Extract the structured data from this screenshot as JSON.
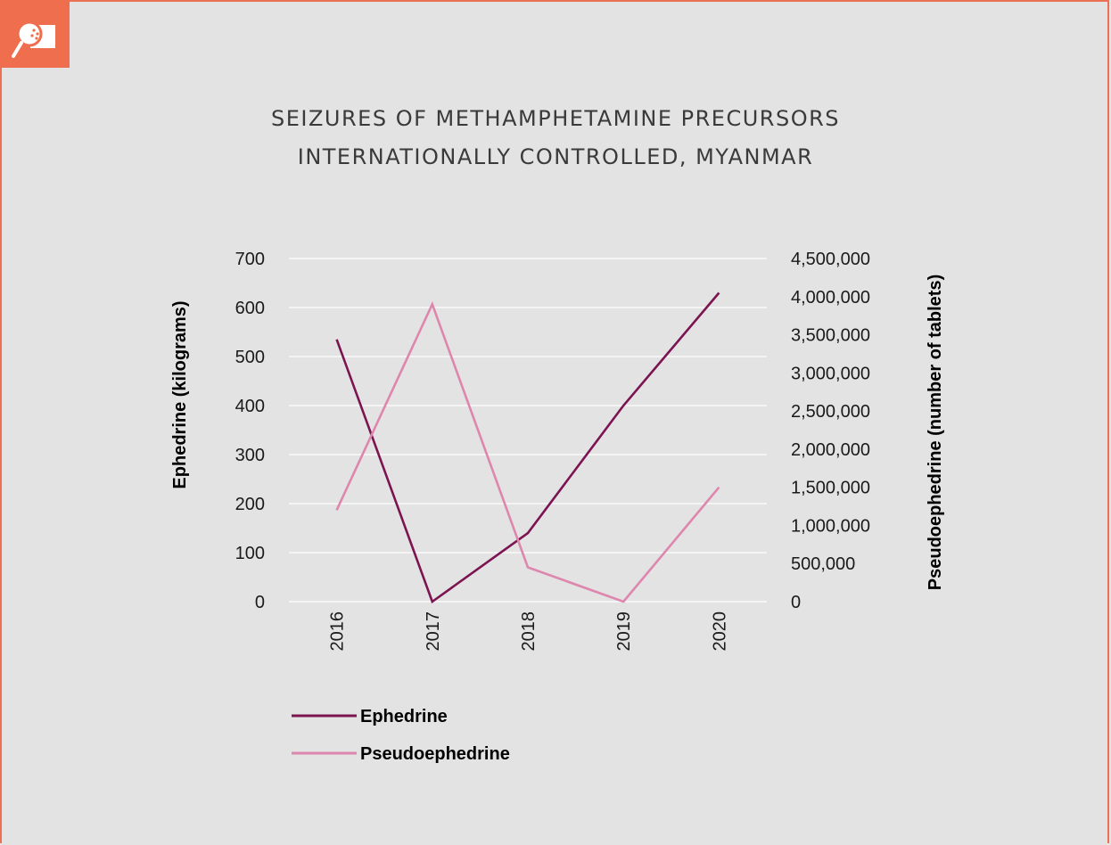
{
  "header": {
    "title_line1": "SEIZURES OF METHAMPHETAMINE PRECURSORS",
    "title_line2": "INTERNATIONALLY CONTROLLED, MYANMAR"
  },
  "icon": "magnifier-leaf-icon",
  "colors": {
    "accent": "#ee6e4e",
    "ephedrine": "#7b1450",
    "pseudoephedrine": "#de86ad",
    "background": "#e3e3e4",
    "grid": "#ffffff"
  },
  "chart_data": {
    "type": "line",
    "title": "SEIZURES OF METHAMPHETAMINE PRECURSORS INTERNATIONALLY CONTROLLED, MYANMAR",
    "categories": [
      "2016",
      "2017",
      "2018",
      "2019",
      "2020"
    ],
    "ylabel_left": "Ephedrine (kilograms)",
    "ylabel_right": "Pseudoephedrine (number of tablets)",
    "ylim_left": [
      0,
      700
    ],
    "yticks_left": [
      "0",
      "100",
      "200",
      "300",
      "400",
      "500",
      "600",
      "700"
    ],
    "ylim_right": [
      0,
      4500000
    ],
    "yticks_right": [
      "0",
      "500,000",
      "1,000,000",
      "1,500,000",
      "2,000,000",
      "2,500,000",
      "3,000,000",
      "3,500,000",
      "4,000,000",
      "4,500,000"
    ],
    "grid": true,
    "legend_position": "bottom-left",
    "series": [
      {
        "name": "Ephedrine",
        "axis": "left",
        "values": [
          535,
          0,
          140,
          400,
          630
        ]
      },
      {
        "name": "Pseudoephedrine",
        "axis": "right",
        "values": [
          1200000,
          3900000,
          450000,
          0,
          1500000
        ]
      }
    ]
  }
}
